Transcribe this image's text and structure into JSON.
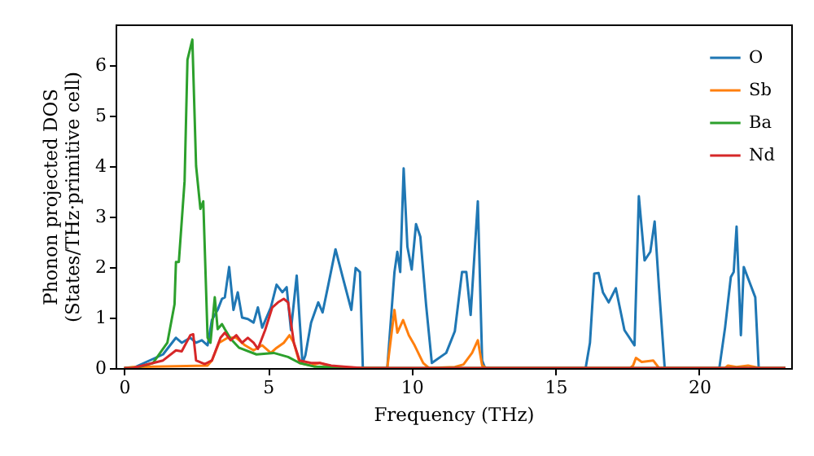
{
  "chart_data": {
    "type": "line",
    "xlabel": "Frequency (THz)",
    "ylabel": "Phonon projected DOS\n(States/THz·primitive cell)",
    "xlim": [
      -0.3,
      23.2
    ],
    "ylim": [
      0,
      6.8
    ],
    "xticks": [
      0,
      5,
      10,
      15,
      20
    ],
    "yticks": [
      0,
      1,
      2,
      3,
      4,
      5,
      6
    ],
    "grid": false,
    "legend": "top right",
    "line_style": "solid",
    "marker": "none",
    "series": [
      {
        "name": "O",
        "color": "#1f77b4",
        "x": [
          0,
          0.3,
          1.35,
          1.8,
          2.0,
          2.3,
          2.5,
          2.7,
          2.9,
          3.05,
          3.25,
          3.4,
          3.5,
          3.65,
          3.8,
          3.95,
          4.1,
          4.3,
          4.5,
          4.65,
          4.8,
          5.1,
          5.3,
          5.5,
          5.65,
          5.8,
          6.0,
          6.2,
          6.3,
          6.5,
          6.75,
          6.9,
          7.1,
          7.35,
          7.6,
          7.9,
          8.05,
          8.2,
          8.3,
          9.15,
          9.4,
          9.5,
          9.6,
          9.72,
          9.85,
          10.0,
          10.15,
          10.3,
          10.5,
          10.7,
          11.2,
          11.5,
          11.75,
          11.9,
          12.05,
          12.3,
          12.45,
          12.55,
          16.05,
          16.2,
          16.35,
          16.5,
          16.65,
          16.85,
          17.1,
          17.4,
          17.75,
          17.9,
          18.1,
          18.3,
          18.45,
          18.6,
          18.8,
          20.7,
          20.9,
          21.1,
          21.2,
          21.3,
          21.45,
          21.55,
          21.75,
          21.95,
          22.07,
          23.0
        ],
        "values": [
          0,
          0,
          0.27,
          0.6,
          0.5,
          0.6,
          0.5,
          0.55,
          0.45,
          0.95,
          1.15,
          1.37,
          1.4,
          2.0,
          1.15,
          1.5,
          1.0,
          0.97,
          0.9,
          1.2,
          0.8,
          1.2,
          1.65,
          1.5,
          1.6,
          0.75,
          1.83,
          0.1,
          0.25,
          0.9,
          1.3,
          1.1,
          1.65,
          2.35,
          1.8,
          1.15,
          1.98,
          1.9,
          0,
          0,
          1.9,
          2.3,
          1.9,
          3.95,
          2.4,
          1.95,
          2.85,
          2.6,
          1.25,
          0.1,
          0.3,
          0.73,
          1.9,
          1.9,
          1.05,
          3.3,
          0.15,
          0,
          0,
          0.5,
          1.87,
          1.88,
          1.5,
          1.3,
          1.58,
          0.75,
          0.45,
          3.4,
          2.13,
          2.3,
          2.9,
          1.6,
          0,
          0,
          0.8,
          1.8,
          1.9,
          2.8,
          0.65,
          2.0,
          1.7,
          1.4,
          0,
          0
        ]
      },
      {
        "name": "Sb",
        "color": "#ff7f0e",
        "x": [
          0,
          0.3,
          2.9,
          3.05,
          3.3,
          3.6,
          3.9,
          4.2,
          4.5,
          4.8,
          5.1,
          5.3,
          5.55,
          5.75,
          5.9,
          6.1,
          6.5,
          6.8,
          7.2,
          8.3,
          9.15,
          9.4,
          9.5,
          9.7,
          9.9,
          10.1,
          10.4,
          10.6,
          11.5,
          11.8,
          12.1,
          12.3,
          12.45,
          12.6,
          17.6,
          17.7,
          17.8,
          18.0,
          18.4,
          18.6,
          20.9,
          21.0,
          21.3,
          21.7,
          22.1,
          23.0
        ],
        "values": [
          0,
          0.02,
          0.05,
          0.15,
          0.5,
          0.6,
          0.6,
          0.45,
          0.35,
          0.45,
          0.3,
          0.4,
          0.5,
          0.65,
          0.5,
          0.1,
          0.05,
          0.1,
          0.03,
          0,
          0,
          1.15,
          0.7,
          0.95,
          0.65,
          0.45,
          0.1,
          0,
          0.02,
          0.07,
          0.3,
          0.55,
          0.05,
          0,
          0,
          0.05,
          0.2,
          0.12,
          0.15,
          0,
          0,
          0.05,
          0.02,
          0.05,
          0,
          0
        ]
      },
      {
        "name": "Ba",
        "color": "#2ca02c",
        "x": [
          0,
          0.4,
          1.0,
          1.5,
          1.75,
          1.8,
          1.9,
          2.1,
          2.2,
          2.37,
          2.5,
          2.65,
          2.75,
          2.9,
          3.0,
          3.15,
          3.25,
          3.4,
          3.5,
          3.7,
          4.0,
          4.6,
          5.2,
          5.7,
          6.1,
          6.6,
          8.3,
          23.0
        ],
        "values": [
          0,
          0,
          0.1,
          0.5,
          1.26,
          2.1,
          2.1,
          3.7,
          6.1,
          6.5,
          4.0,
          3.15,
          3.3,
          0.6,
          0.5,
          1.4,
          0.77,
          0.87,
          0.77,
          0.58,
          0.4,
          0.27,
          0.3,
          0.22,
          0.1,
          0.03,
          0,
          0
        ]
      },
      {
        "name": "Nd",
        "color": "#d62728",
        "x": [
          0,
          0.3,
          1.35,
          1.8,
          2.0,
          2.3,
          2.4,
          2.5,
          2.8,
          3.05,
          3.35,
          3.5,
          3.7,
          3.9,
          4.1,
          4.3,
          4.5,
          4.65,
          4.9,
          5.15,
          5.35,
          5.55,
          5.7,
          5.9,
          6.1,
          6.5,
          6.8,
          7.2,
          7.8,
          8.3,
          23.0
        ],
        "values": [
          0,
          0,
          0.15,
          0.35,
          0.33,
          0.65,
          0.67,
          0.15,
          0.08,
          0.15,
          0.6,
          0.7,
          0.55,
          0.65,
          0.5,
          0.6,
          0.5,
          0.38,
          0.75,
          1.2,
          1.3,
          1.37,
          1.3,
          0.5,
          0.15,
          0.1,
          0.1,
          0.05,
          0.02,
          0,
          0
        ]
      }
    ]
  }
}
